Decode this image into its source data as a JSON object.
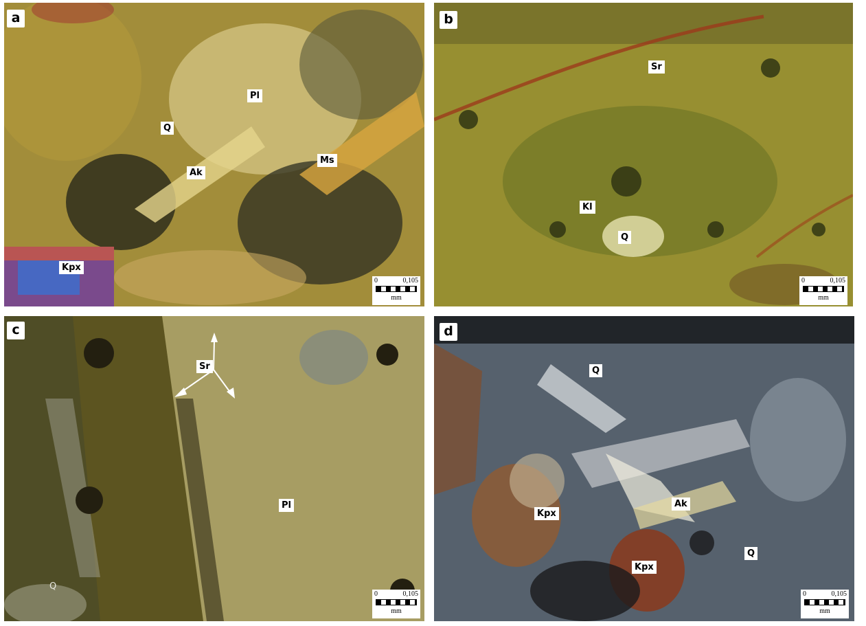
{
  "panels": [
    {
      "letter": "a",
      "colors": {
        "base": "#8c7a2a",
        "accent": "#d9c26a"
      },
      "labels": [
        "Pl",
        "Q",
        "Ak",
        "Ms",
        "Kpx"
      ],
      "scale": {
        "zero": "0",
        "value": "0,105",
        "unit": "mm"
      }
    },
    {
      "letter": "b",
      "colors": {
        "base": "#7d7a25",
        "accent": "#c8b848"
      },
      "labels": [
        "Sr",
        "Kl",
        "Q"
      ],
      "scale": {
        "zero": "0",
        "value": "0,105",
        "unit": "mm"
      }
    },
    {
      "letter": "c",
      "colors": {
        "base": "#5c5420",
        "accent": "#b4aa70"
      },
      "labels": [
        "Sr",
        "Pl",
        "Q"
      ],
      "scale": {
        "zero": "0",
        "value": "0,105",
        "unit": "mm"
      }
    },
    {
      "letter": "d",
      "colors": {
        "base": "#3b4550",
        "accent": "#c9ccd2"
      },
      "labels": [
        "Q",
        "Kpx",
        "Ak",
        "Kpx",
        "Q"
      ],
      "scale": {
        "zero": "0",
        "value": "0,105",
        "unit": "mm"
      }
    }
  ]
}
